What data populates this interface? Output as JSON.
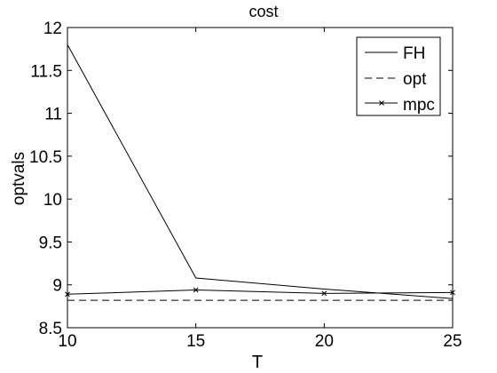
{
  "chart_data": {
    "type": "line",
    "title": "cost",
    "xlabel": "T",
    "ylabel": "optvals",
    "xlim": [
      10,
      25
    ],
    "ylim": [
      8.5,
      12
    ],
    "xticks": [
      "10",
      "15",
      "20",
      "25"
    ],
    "yticks": [
      "8.5",
      "9",
      "9.5",
      "10",
      "10.5",
      "11",
      "11.5",
      "12"
    ],
    "grid": false,
    "legend_position": "top-right",
    "series": [
      {
        "name": "FH",
        "style": "solid",
        "marker": "none",
        "x": [
          10,
          15,
          20,
          25
        ],
        "y": [
          11.8,
          9.08,
          8.95,
          8.84
        ]
      },
      {
        "name": "opt",
        "style": "dashed",
        "marker": "none",
        "x": [
          10,
          25
        ],
        "y": [
          8.82,
          8.82
        ]
      },
      {
        "name": "mpc",
        "style": "solid",
        "marker": "x",
        "x": [
          10,
          15,
          20,
          25
        ],
        "y": [
          8.89,
          8.94,
          8.9,
          8.91
        ]
      }
    ]
  },
  "colors": {
    "axis": "#000000",
    "line": "#000000",
    "background": "#ffffff"
  }
}
